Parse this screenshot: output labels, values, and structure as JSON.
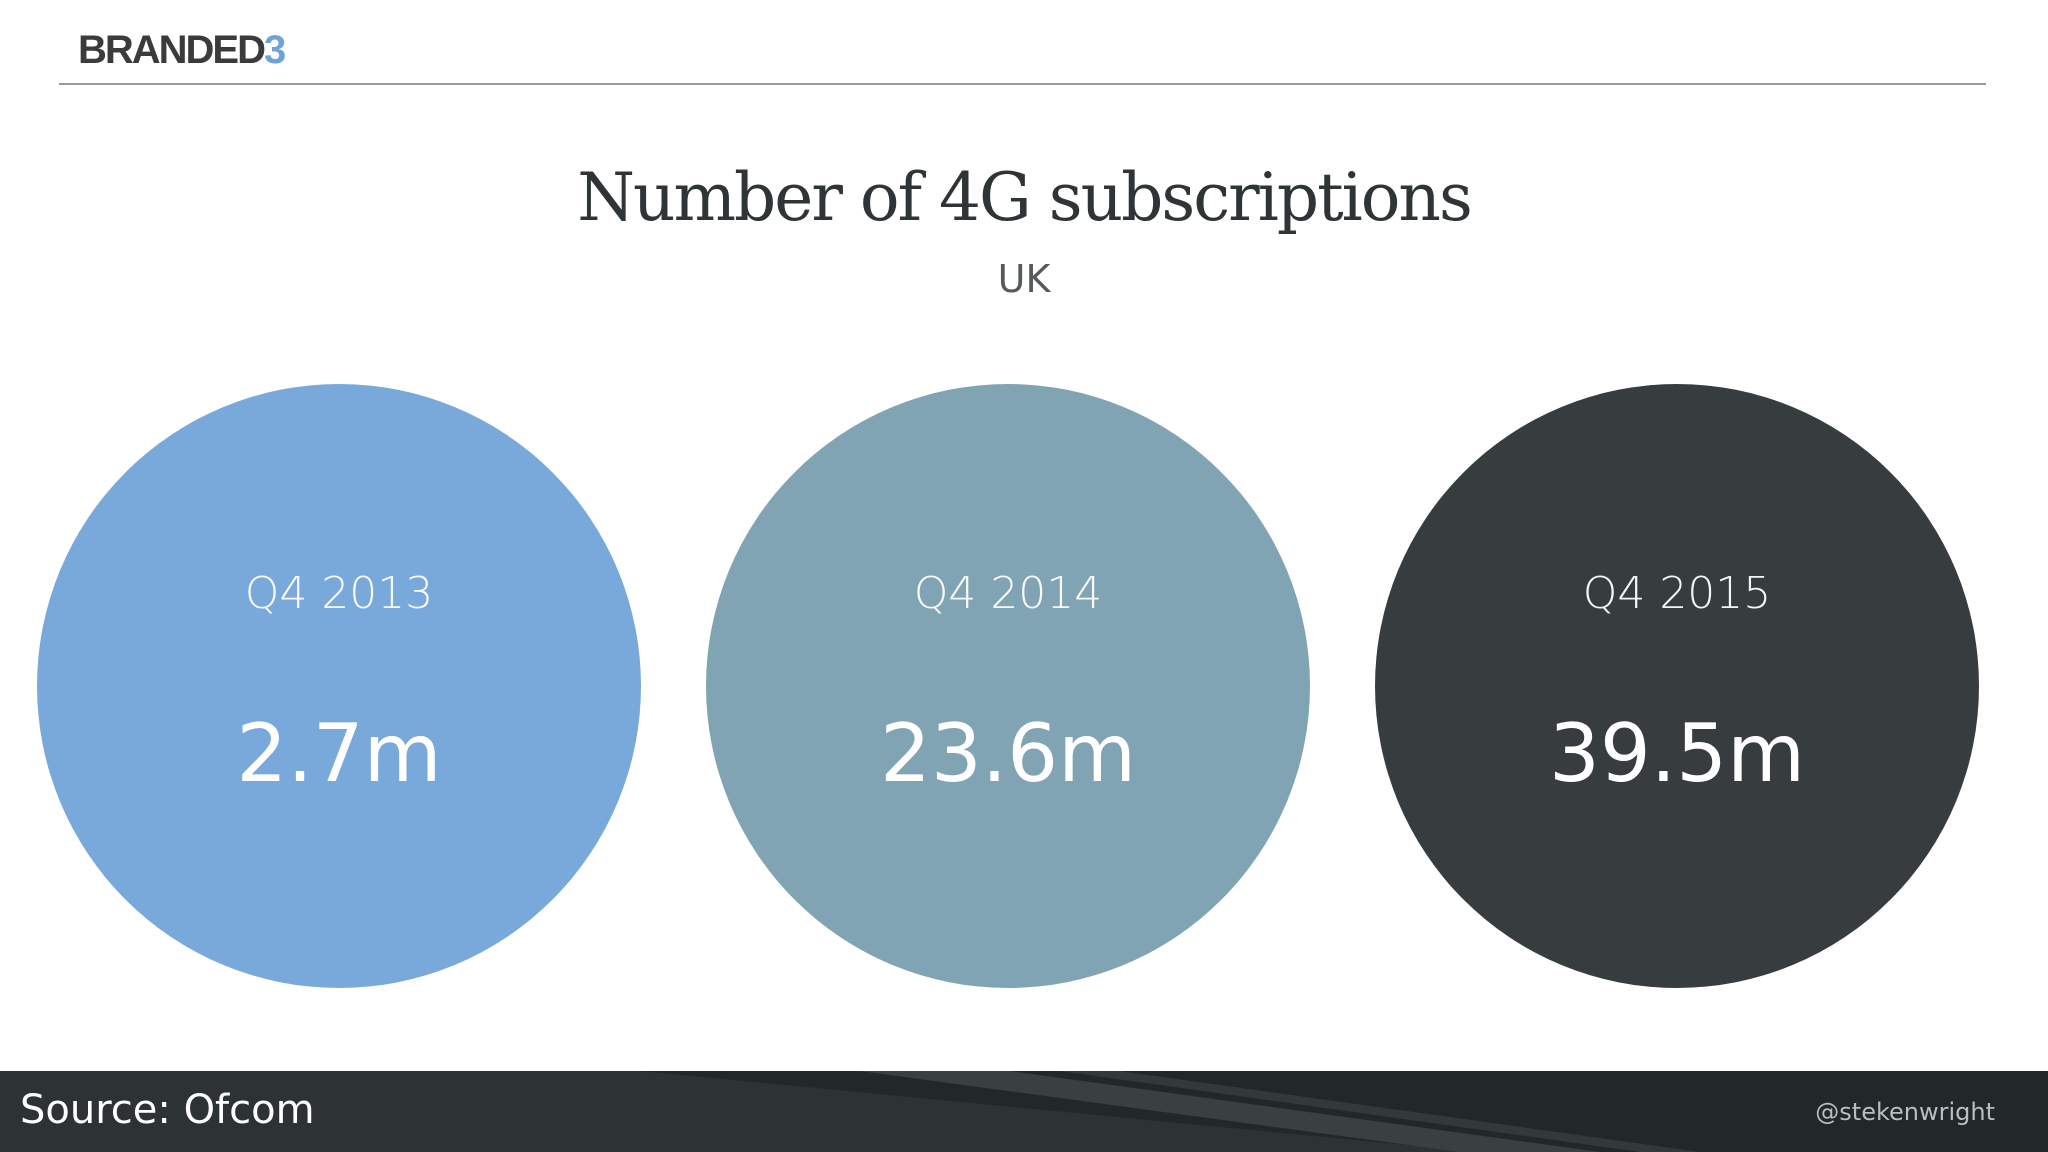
{
  "brand": {
    "logo_text": "BRANDED",
    "logo_accent": "3",
    "logo_color": "#3b3b3b",
    "accent_color": "#6fa3d6"
  },
  "slide": {
    "title": "Number of 4G subscriptions",
    "subtitle": "UK"
  },
  "stats": [
    {
      "period": "Q4 2013",
      "value": "2.7m",
      "color": "#79a8db"
    },
    {
      "period": "Q4 2014",
      "value": "23.6m",
      "color": "#81a4b4"
    },
    {
      "period": "Q4 2015",
      "value": "39.5m",
      "color": "#373c3e"
    }
  ],
  "footer": {
    "source": "Source: Ofcom",
    "handle": "@stekenwright",
    "background_color": "#2d3235"
  }
}
